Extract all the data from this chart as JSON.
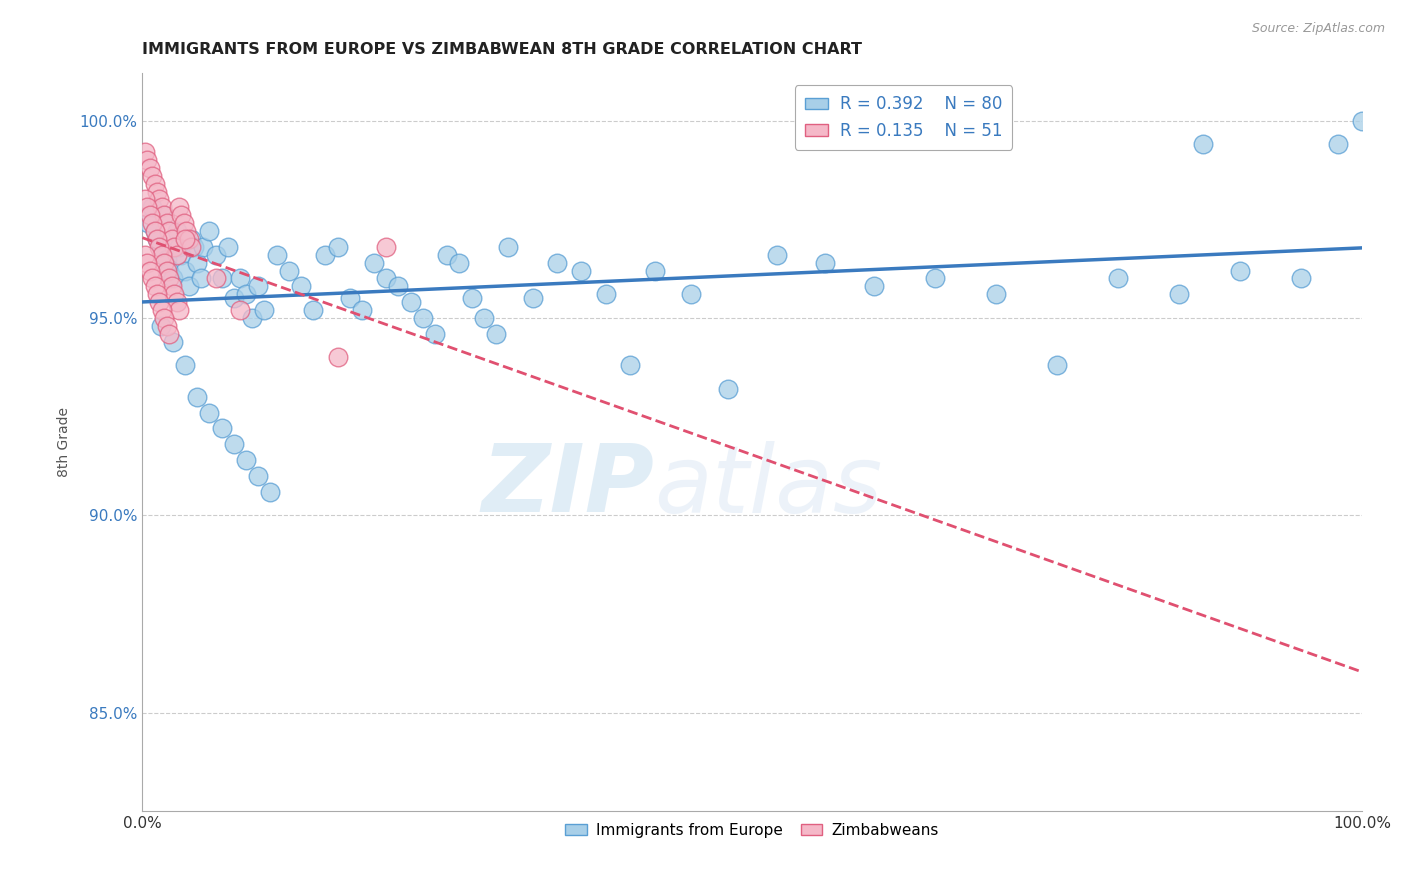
{
  "title": "IMMIGRANTS FROM EUROPE VS ZIMBABWEAN 8TH GRADE CORRELATION CHART",
  "source": "Source: ZipAtlas.com",
  "ylabel": "8th Grade",
  "xlim": [
    0.0,
    1.0
  ],
  "ylim": [
    0.825,
    1.012
  ],
  "yticks": [
    0.85,
    0.9,
    0.95,
    1.0
  ],
  "ytick_labels": [
    "85.0%",
    "90.0%",
    "95.0%",
    "100.0%"
  ],
  "xtick_labels": [
    "0.0%",
    "100.0%"
  ],
  "xticks": [
    0.0,
    1.0
  ],
  "blue_x": [
    0.005,
    0.008,
    0.01,
    0.012,
    0.015,
    0.018,
    0.02,
    0.022,
    0.025,
    0.028,
    0.03,
    0.032,
    0.035,
    0.038,
    0.04,
    0.042,
    0.045,
    0.048,
    0.05,
    0.055,
    0.06,
    0.065,
    0.07,
    0.075,
    0.08,
    0.085,
    0.09,
    0.095,
    0.1,
    0.11,
    0.12,
    0.13,
    0.14,
    0.15,
    0.16,
    0.17,
    0.18,
    0.19,
    0.2,
    0.21,
    0.22,
    0.23,
    0.24,
    0.25,
    0.26,
    0.27,
    0.28,
    0.29,
    0.3,
    0.32,
    0.34,
    0.36,
    0.38,
    0.4,
    0.42,
    0.45,
    0.48,
    0.52,
    0.56,
    0.6,
    0.65,
    0.7,
    0.75,
    0.8,
    0.85,
    0.87,
    0.9,
    0.95,
    0.98,
    1.0,
    0.015,
    0.025,
    0.035,
    0.045,
    0.055,
    0.065,
    0.075,
    0.085,
    0.095,
    0.105
  ],
  "blue_y": [
    0.974,
    0.978,
    0.972,
    0.97,
    0.968,
    0.976,
    0.965,
    0.962,
    0.96,
    0.972,
    0.968,
    0.966,
    0.962,
    0.958,
    0.97,
    0.968,
    0.964,
    0.96,
    0.968,
    0.972,
    0.966,
    0.96,
    0.968,
    0.955,
    0.96,
    0.956,
    0.95,
    0.958,
    0.952,
    0.966,
    0.962,
    0.958,
    0.952,
    0.966,
    0.968,
    0.955,
    0.952,
    0.964,
    0.96,
    0.958,
    0.954,
    0.95,
    0.946,
    0.966,
    0.964,
    0.955,
    0.95,
    0.946,
    0.968,
    0.955,
    0.964,
    0.962,
    0.956,
    0.938,
    0.962,
    0.956,
    0.932,
    0.966,
    0.964,
    0.958,
    0.96,
    0.956,
    0.938,
    0.96,
    0.956,
    0.994,
    0.962,
    0.96,
    0.994,
    1.0,
    0.948,
    0.944,
    0.938,
    0.93,
    0.926,
    0.922,
    0.918,
    0.914,
    0.91,
    0.906
  ],
  "pink_x": [
    0.002,
    0.004,
    0.006,
    0.008,
    0.01,
    0.012,
    0.014,
    0.016,
    0.018,
    0.02,
    0.022,
    0.024,
    0.026,
    0.028,
    0.03,
    0.032,
    0.034,
    0.036,
    0.038,
    0.04,
    0.002,
    0.004,
    0.006,
    0.008,
    0.01,
    0.012,
    0.014,
    0.016,
    0.018,
    0.02,
    0.022,
    0.024,
    0.026,
    0.028,
    0.03,
    0.002,
    0.004,
    0.006,
    0.008,
    0.01,
    0.012,
    0.014,
    0.016,
    0.018,
    0.02,
    0.022,
    0.035,
    0.06,
    0.08,
    0.2,
    0.16
  ],
  "pink_y": [
    0.992,
    0.99,
    0.988,
    0.986,
    0.984,
    0.982,
    0.98,
    0.978,
    0.976,
    0.974,
    0.972,
    0.97,
    0.968,
    0.966,
    0.978,
    0.976,
    0.974,
    0.972,
    0.97,
    0.968,
    0.98,
    0.978,
    0.976,
    0.974,
    0.972,
    0.97,
    0.968,
    0.966,
    0.964,
    0.962,
    0.96,
    0.958,
    0.956,
    0.954,
    0.952,
    0.966,
    0.964,
    0.962,
    0.96,
    0.958,
    0.956,
    0.954,
    0.952,
    0.95,
    0.948,
    0.946,
    0.97,
    0.96,
    0.952,
    0.968,
    0.94
  ],
  "blue_color": "#a8cfe8",
  "pink_color": "#f5b8c8",
  "blue_edge_color": "#5a9fd4",
  "pink_edge_color": "#e06080",
  "blue_line_color": "#3a7abf",
  "pink_line_color": "#e05070",
  "R_blue": 0.392,
  "N_blue": 80,
  "R_pink": 0.135,
  "N_pink": 51,
  "watermark_zip": "ZIP",
  "watermark_atlas": "atlas",
  "legend_label_blue": "Immigrants from Europe",
  "legend_label_pink": "Zimbabweans",
  "title_fontsize": 11.5,
  "background_color": "#ffffff"
}
